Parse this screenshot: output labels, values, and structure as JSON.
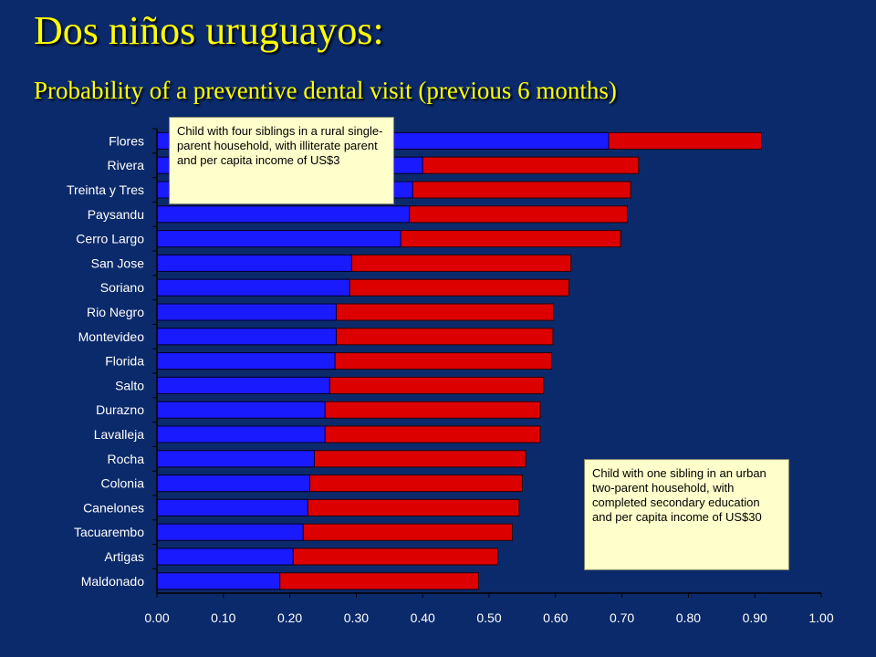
{
  "title": "Dos niños uruguayos:",
  "subtitle": "Probability of a preventive dental visit (previous 6 months)",
  "callouts": {
    "disadvantaged": "Child with four siblings in a rural single-parent household, with illiterate parent and per capita income of US$3",
    "advantaged": "Child with one sibling in an urban two-parent household, with completed secondary education and per capita income of US$30"
  },
  "colors": {
    "background": "#0b2a6b",
    "title": "#ffff00",
    "series_blue": "#1a1aff",
    "series_red": "#dd0000",
    "axis_text": "#ffffff",
    "callout_bg": "#ffffcc"
  },
  "chart_data": {
    "type": "bar",
    "orientation": "horizontal",
    "stacked": false,
    "overlapping": true,
    "categories": [
      "Flores",
      "Rivera",
      "Treinta y Tres",
      "Paysandu",
      "Cerro Largo",
      "San Jose",
      "Soriano",
      "Rio Negro",
      "Montevideo",
      "Florida",
      "Salto",
      "Durazno",
      "Lavalleja",
      "Rocha",
      "Colonia",
      "Canelones",
      "Tacuarembo",
      "Artigas",
      "Maldonado"
    ],
    "series": [
      {
        "values": [
          0.68,
          0.4,
          0.385,
          0.38,
          0.367,
          0.293,
          0.29,
          0.27,
          0.27,
          0.268,
          0.26,
          0.253,
          0.253,
          0.237,
          0.23,
          0.227,
          0.22,
          0.205,
          0.185
        ],
        "color": "#1a1aff"
      },
      {
        "values": [
          0.91,
          0.725,
          0.713,
          0.708,
          0.698,
          0.623,
          0.62,
          0.597,
          0.596,
          0.594,
          0.582,
          0.577,
          0.577,
          0.555,
          0.55,
          0.545,
          0.535,
          0.513,
          0.484
        ],
        "color": "#dd0000"
      }
    ],
    "xlim": [
      0,
      1
    ],
    "xticks": [
      "0.00",
      "0.10",
      "0.20",
      "0.30",
      "0.40",
      "0.50",
      "0.60",
      "0.70",
      "0.80",
      "0.90",
      "1.00"
    ],
    "grid": false,
    "legend": "none"
  }
}
